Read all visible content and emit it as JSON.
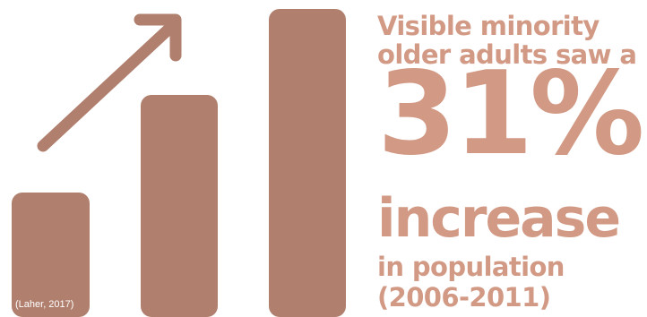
{
  "headline": {
    "line1": "Visible minority",
    "line2": "older adults saw a",
    "percent": "31%",
    "word": "increase",
    "line3": "in population",
    "line4": "(2006-2011)"
  },
  "source": "(Laher, 2017)",
  "colors": {
    "bars": "#b07f6e",
    "text": "#d29a85",
    "background": "#ffffff"
  },
  "icons": [
    "trend-arrow-icon",
    "growth-bars-icon"
  ]
}
